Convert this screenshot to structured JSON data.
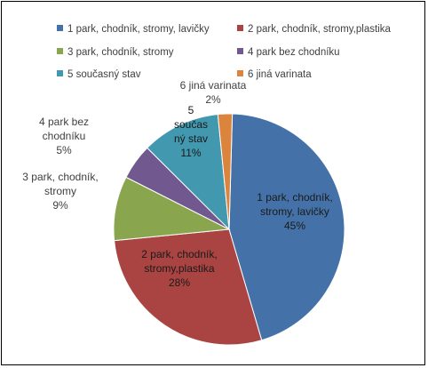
{
  "chart_data": {
    "type": "pie",
    "title": "",
    "categories": [
      "1 park, chodník, stromy, lavičky",
      "2 park, chodník, stromy,plastika",
      "3 park, chodník, stromy",
      "4 park bez chodníku",
      "5 současný stav",
      "6 jiná varinata"
    ],
    "values": [
      45,
      28,
      9,
      5,
      11,
      2
    ],
    "value_labels": [
      "45%",
      "28%",
      "9%",
      "5%",
      "11%",
      "2%"
    ],
    "slice_label_lines": [
      [
        "1 park, chodník,",
        "stromy, lavičky",
        "45%"
      ],
      [
        "2 park, chodník,",
        "stromy,plastika",
        "28%"
      ],
      [
        "3 park, chodník,",
        "stromy",
        "9%"
      ],
      [
        "4 park bez",
        "chodníku",
        "5%"
      ],
      [
        "5",
        "součas",
        "ný stav",
        "11%"
      ],
      [
        "6 jiná varinata",
        "2%"
      ]
    ],
    "colors": [
      "#4472A8",
      "#A94442",
      "#89A54E",
      "#71588F",
      "#4198AF",
      "#DB843D"
    ],
    "legend_position": "top",
    "legend_entries": [
      "1 park, chodník, stromy, lavičky",
      "2 park, chodník, stromy,plastika",
      "3 park, chodník, stromy",
      "4 park bez chodníku",
      "5 současný stav",
      "6 jiná varinata"
    ]
  }
}
